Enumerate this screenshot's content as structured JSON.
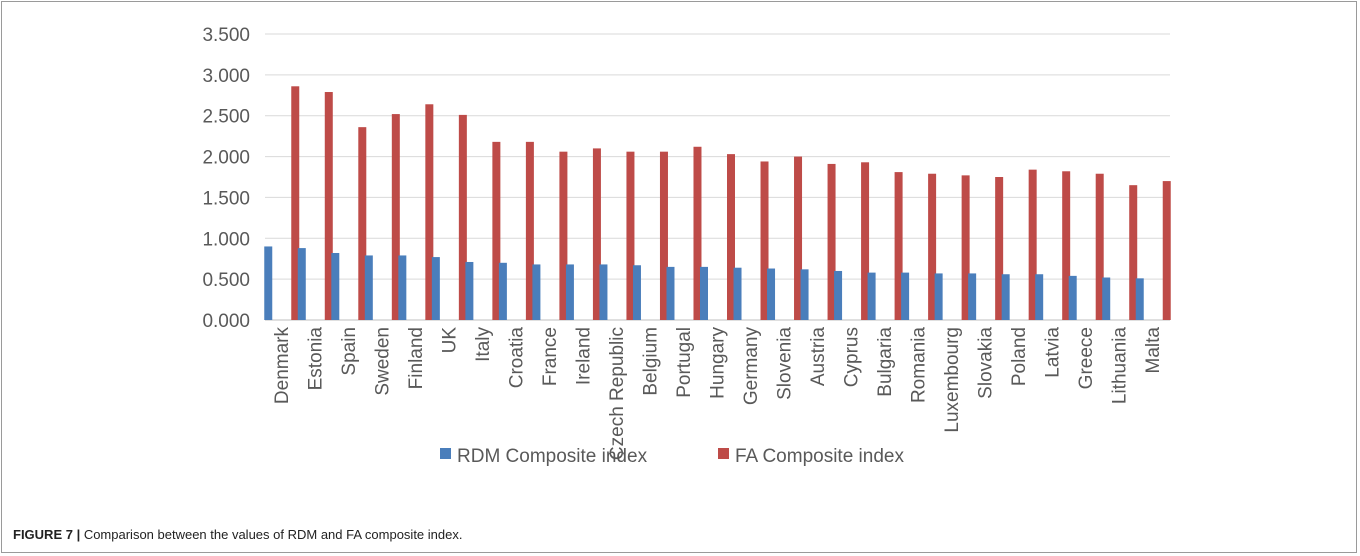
{
  "chart_data": {
    "type": "bar",
    "categories": [
      "Denmark",
      "Estonia",
      "Spain",
      "Sweden",
      "Finland",
      "UK",
      "Italy",
      "Croatia",
      "France",
      "Ireland",
      "Czech Republic",
      "Belgium",
      "Portugal",
      "Hungary",
      "Germany",
      "Slovenia",
      "Austria",
      "Cyprus",
      "Bulgaria",
      "Romania",
      "Luxembourg",
      "Slovakia",
      "Poland",
      "Latvia",
      "Greece",
      "Lithuania",
      "Malta"
    ],
    "series": [
      {
        "name": "RDM Composite index",
        "color": "#4a7ebb",
        "values": [
          0.9,
          0.88,
          0.82,
          0.79,
          0.79,
          0.77,
          0.71,
          0.7,
          0.68,
          0.68,
          0.68,
          0.67,
          0.65,
          0.65,
          0.64,
          0.63,
          0.62,
          0.6,
          0.58,
          0.58,
          0.57,
          0.57,
          0.56,
          0.56,
          0.54,
          0.52,
          0.51
        ]
      },
      {
        "name": "FA Composite index",
        "color": "#be4b48",
        "values": [
          2.86,
          2.79,
          2.36,
          2.52,
          2.64,
          2.51,
          2.18,
          2.18,
          2.06,
          2.1,
          2.06,
          2.06,
          2.12,
          2.03,
          1.94,
          2.0,
          1.91,
          1.93,
          1.81,
          1.79,
          1.77,
          1.75,
          1.84,
          1.82,
          1.79,
          1.65,
          1.7
        ]
      }
    ],
    "yticks": [
      "0.000",
      "0.500",
      "1.000",
      "1.500",
      "2.000",
      "2.500",
      "3.000",
      "3.500"
    ],
    "ylim": [
      0,
      3.5
    ],
    "grid": true,
    "legend_position": "bottom"
  },
  "caption": {
    "label": "FIGURE 7 |",
    "text": " Comparison between the values of RDM and FA composite index."
  }
}
